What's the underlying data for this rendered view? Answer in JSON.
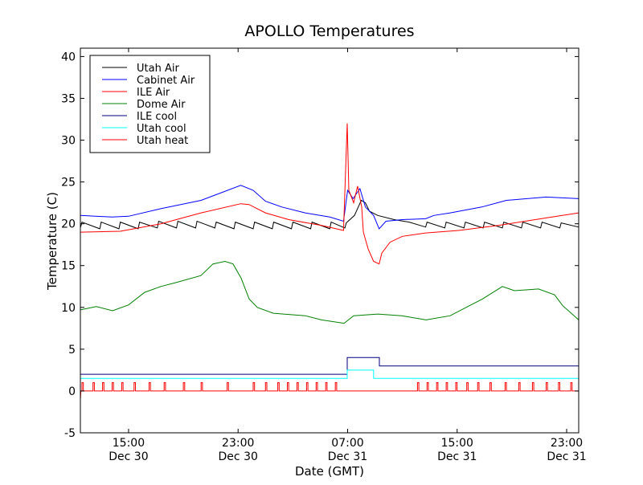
{
  "chart_data": {
    "type": "line",
    "title": "APOLLO Temperatures",
    "xlabel": "Date (GMT)",
    "ylabel": "Temperature (C)",
    "x_units": "hours since Dec 30 00:00 GMT",
    "xlim": [
      11.48,
      47.88
    ],
    "ylim": [
      -5,
      41
    ],
    "grid": false,
    "legend_position": "top-left",
    "xticks": [
      {
        "value": 15,
        "time": "15:00",
        "date": "Dec 30"
      },
      {
        "value": 23,
        "time": "23:00",
        "date": "Dec 30"
      },
      {
        "value": 31,
        "time": "07:00",
        "date": "Dec 31"
      },
      {
        "value": 39,
        "time": "15:00",
        "date": "Dec 31"
      },
      {
        "value": 47,
        "time": "23:00",
        "date": "Dec 31"
      }
    ],
    "yticks": [
      {
        "value": -5,
        "label": "-5"
      },
      {
        "value": 0,
        "label": "0"
      },
      {
        "value": 5,
        "label": "5"
      },
      {
        "value": 10,
        "label": "10"
      },
      {
        "value": 15,
        "label": "15"
      },
      {
        "value": 20,
        "label": "20"
      },
      {
        "value": 25,
        "label": "25"
      },
      {
        "value": 30,
        "label": "30"
      },
      {
        "value": 35,
        "label": "35"
      },
      {
        "value": 40,
        "label": "40"
      }
    ],
    "series": [
      {
        "name": "Utah Air",
        "color": "#000000",
        "points": [
          [
            11.5,
            19.6
          ],
          [
            11.6,
            20.2
          ],
          [
            12.9,
            19.4
          ],
          [
            13.0,
            20.2
          ],
          [
            14.3,
            19.4
          ],
          [
            14.4,
            20.2
          ],
          [
            15.7,
            19.4
          ],
          [
            15.8,
            20.2
          ],
          [
            17.1,
            19.5
          ],
          [
            17.2,
            20.3
          ],
          [
            18.5,
            19.5
          ],
          [
            18.6,
            20.3
          ],
          [
            19.9,
            19.5
          ],
          [
            20.0,
            20.3
          ],
          [
            21.3,
            19.5
          ],
          [
            21.4,
            20.2
          ],
          [
            22.7,
            19.4
          ],
          [
            22.8,
            20.2
          ],
          [
            24.1,
            19.4
          ],
          [
            24.2,
            20.2
          ],
          [
            25.5,
            19.4
          ],
          [
            25.6,
            20.2
          ],
          [
            26.9,
            19.4
          ],
          [
            27.0,
            20.2
          ],
          [
            28.3,
            19.4
          ],
          [
            28.4,
            20.2
          ],
          [
            29.7,
            19.4
          ],
          [
            29.8,
            20.2
          ],
          [
            30.8,
            19.5
          ],
          [
            30.9,
            20.1
          ],
          [
            31.5,
            21.0
          ],
          [
            32.0,
            22.8
          ],
          [
            32.3,
            22.5
          ],
          [
            32.6,
            21.5
          ],
          [
            33.2,
            21.0
          ],
          [
            34.4,
            20.5
          ],
          [
            35.5,
            20.2
          ],
          [
            36.7,
            19.6
          ],
          [
            36.8,
            20.2
          ],
          [
            38.1,
            19.5
          ],
          [
            38.2,
            20.2
          ],
          [
            39.5,
            19.5
          ],
          [
            39.6,
            20.2
          ],
          [
            40.9,
            19.5
          ],
          [
            41.0,
            20.2
          ],
          [
            42.3,
            19.5
          ],
          [
            42.4,
            20.2
          ],
          [
            43.7,
            19.5
          ],
          [
            43.8,
            20.2
          ],
          [
            45.1,
            19.5
          ],
          [
            45.2,
            20.2
          ],
          [
            46.5,
            19.5
          ],
          [
            46.6,
            20.1
          ],
          [
            47.88,
            19.6
          ]
        ]
      },
      {
        "name": "Cabinet Air",
        "color": "#0000ff",
        "points": [
          [
            11.48,
            21.0
          ],
          [
            13.8,
            20.8
          ],
          [
            15.0,
            20.9
          ],
          [
            17.35,
            21.8
          ],
          [
            20.3,
            22.8
          ],
          [
            23.2,
            24.6
          ],
          [
            24.1,
            24.0
          ],
          [
            25.0,
            22.7
          ],
          [
            26.2,
            22.0
          ],
          [
            27.9,
            21.3
          ],
          [
            29.7,
            20.8
          ],
          [
            30.7,
            20.3
          ],
          [
            31.0,
            24.0
          ],
          [
            31.4,
            23.0
          ],
          [
            31.9,
            24.2
          ],
          [
            32.3,
            22.0
          ],
          [
            32.9,
            21.0
          ],
          [
            33.3,
            19.4
          ],
          [
            33.8,
            20.3
          ],
          [
            35.0,
            20.5
          ],
          [
            36.7,
            20.6
          ],
          [
            37.3,
            21.0
          ],
          [
            38.5,
            21.3
          ],
          [
            40.8,
            22.0
          ],
          [
            42.6,
            22.8
          ],
          [
            45.5,
            23.2
          ],
          [
            47.88,
            23.0
          ]
        ]
      },
      {
        "name": "ILE Air",
        "color": "#ff0000",
        "points": [
          [
            11.48,
            19.0
          ],
          [
            14.4,
            19.1
          ],
          [
            17.35,
            20.0
          ],
          [
            20.3,
            21.3
          ],
          [
            23.2,
            22.4
          ],
          [
            23.8,
            22.3
          ],
          [
            25.0,
            21.3
          ],
          [
            26.7,
            20.5
          ],
          [
            29.1,
            19.8
          ],
          [
            30.7,
            19.2
          ],
          [
            30.97,
            32.0
          ],
          [
            31.09,
            24.0
          ],
          [
            31.44,
            22.5
          ],
          [
            31.73,
            24.5
          ],
          [
            32.03,
            22.0
          ],
          [
            32.15,
            19.0
          ],
          [
            32.5,
            17.0
          ],
          [
            32.9,
            15.5
          ],
          [
            33.3,
            15.2
          ],
          [
            33.5,
            16.5
          ],
          [
            34.1,
            17.8
          ],
          [
            35.0,
            18.5
          ],
          [
            36.7,
            18.9
          ],
          [
            39.1,
            19.2
          ],
          [
            42.0,
            19.8
          ],
          [
            45.5,
            20.7
          ],
          [
            47.88,
            21.3
          ]
        ]
      },
      {
        "name": "Dome Air",
        "color": "#008000",
        "points": [
          [
            11.48,
            9.7
          ],
          [
            12.65,
            10.1
          ],
          [
            13.83,
            9.6
          ],
          [
            15.0,
            10.3
          ],
          [
            16.17,
            11.8
          ],
          [
            17.35,
            12.5
          ],
          [
            18.52,
            13.0
          ],
          [
            20.28,
            13.8
          ],
          [
            21.17,
            15.2
          ],
          [
            22.05,
            15.5
          ],
          [
            22.63,
            15.2
          ],
          [
            23.22,
            13.5
          ],
          [
            23.81,
            11.0
          ],
          [
            24.4,
            10.0
          ],
          [
            25.57,
            9.3
          ],
          [
            27.92,
            9.0
          ],
          [
            29.09,
            8.5
          ],
          [
            30.74,
            8.1
          ],
          [
            31.44,
            9.0
          ],
          [
            33.2,
            9.2
          ],
          [
            34.96,
            9.0
          ],
          [
            36.73,
            8.5
          ],
          [
            38.49,
            9.0
          ],
          [
            39.66,
            10.0
          ],
          [
            40.84,
            11.0
          ],
          [
            42.3,
            12.5
          ],
          [
            43.19,
            12.0
          ],
          [
            44.95,
            12.2
          ],
          [
            46.12,
            11.5
          ],
          [
            46.71,
            10.2
          ],
          [
            47.88,
            8.5
          ]
        ]
      },
      {
        "name": "ILE cool",
        "color": "#000080",
        "points": [
          [
            11.48,
            2.0
          ],
          [
            30.97,
            2.0
          ],
          [
            30.97,
            4.0
          ],
          [
            33.32,
            4.0
          ],
          [
            33.32,
            3.0
          ],
          [
            47.88,
            3.0
          ]
        ]
      },
      {
        "name": "Utah cool",
        "color": "#00ffff",
        "points": [
          [
            11.48,
            1.5
          ],
          [
            30.97,
            1.5
          ],
          [
            30.97,
            2.5
          ],
          [
            32.9,
            2.5
          ],
          [
            32.9,
            1.5
          ],
          [
            47.88,
            1.5
          ]
        ]
      },
      {
        "name": "Utah heat",
        "color": "#ff0000",
        "points": [
          [
            11.48,
            -1.0
          ],
          [
            11.52,
            0
          ],
          [
            11.6,
            0
          ],
          [
            11.6,
            1
          ],
          [
            11.7,
            1
          ],
          [
            11.7,
            0
          ],
          [
            12.4,
            0
          ],
          [
            12.4,
            1
          ],
          [
            12.5,
            1
          ],
          [
            12.5,
            0
          ],
          [
            13.1,
            0
          ],
          [
            13.1,
            1
          ],
          [
            13.2,
            1
          ],
          [
            13.2,
            0
          ],
          [
            13.8,
            0
          ],
          [
            13.8,
            1
          ],
          [
            13.9,
            1
          ],
          [
            13.9,
            0
          ],
          [
            14.5,
            0
          ],
          [
            14.5,
            1
          ],
          [
            14.6,
            1
          ],
          [
            14.6,
            0
          ],
          [
            15.4,
            0
          ],
          [
            15.4,
            1
          ],
          [
            15.5,
            1
          ],
          [
            15.5,
            0
          ],
          [
            16.5,
            0
          ],
          [
            16.5,
            1
          ],
          [
            16.6,
            1
          ],
          [
            16.6,
            0
          ],
          [
            17.6,
            0
          ],
          [
            17.6,
            1
          ],
          [
            17.7,
            1
          ],
          [
            17.7,
            0
          ],
          [
            19.0,
            0
          ],
          [
            19.0,
            1
          ],
          [
            19.1,
            1
          ],
          [
            19.1,
            0
          ],
          [
            20.3,
            0
          ],
          [
            20.3,
            1
          ],
          [
            20.4,
            1
          ],
          [
            20.4,
            0
          ],
          [
            22.2,
            0
          ],
          [
            22.2,
            1
          ],
          [
            22.3,
            1
          ],
          [
            22.3,
            0
          ],
          [
            24.1,
            0
          ],
          [
            24.1,
            1
          ],
          [
            24.2,
            1
          ],
          [
            24.2,
            0
          ],
          [
            25.0,
            0
          ],
          [
            25.0,
            1
          ],
          [
            25.1,
            1
          ],
          [
            25.1,
            0
          ],
          [
            25.9,
            0
          ],
          [
            25.9,
            1
          ],
          [
            26.0,
            1
          ],
          [
            26.0,
            0
          ],
          [
            26.6,
            0
          ],
          [
            26.6,
            1
          ],
          [
            26.7,
            1
          ],
          [
            26.7,
            0
          ],
          [
            27.3,
            0
          ],
          [
            27.3,
            1
          ],
          [
            27.4,
            1
          ],
          [
            27.4,
            0
          ],
          [
            28.0,
            0
          ],
          [
            28.0,
            1
          ],
          [
            28.1,
            1
          ],
          [
            28.1,
            0
          ],
          [
            28.7,
            0
          ],
          [
            28.7,
            1
          ],
          [
            28.8,
            1
          ],
          [
            28.8,
            0
          ],
          [
            29.4,
            0
          ],
          [
            29.4,
            1
          ],
          [
            29.5,
            1
          ],
          [
            29.5,
            0
          ],
          [
            30.1,
            0
          ],
          [
            30.1,
            1
          ],
          [
            30.2,
            1
          ],
          [
            30.2,
            0
          ],
          [
            36.1,
            0
          ],
          [
            36.1,
            1
          ],
          [
            36.2,
            1
          ],
          [
            36.2,
            0
          ],
          [
            36.8,
            0
          ],
          [
            36.8,
            1
          ],
          [
            36.9,
            1
          ],
          [
            36.9,
            0
          ],
          [
            37.5,
            0
          ],
          [
            37.5,
            1
          ],
          [
            37.6,
            1
          ],
          [
            37.6,
            0
          ],
          [
            38.2,
            0
          ],
          [
            38.2,
            1
          ],
          [
            38.3,
            1
          ],
          [
            38.3,
            0
          ],
          [
            38.9,
            0
          ],
          [
            38.9,
            1
          ],
          [
            39.0,
            1
          ],
          [
            39.0,
            0
          ],
          [
            39.7,
            0
          ],
          [
            39.7,
            1
          ],
          [
            39.8,
            1
          ],
          [
            39.8,
            0
          ],
          [
            40.5,
            0
          ],
          [
            40.5,
            1
          ],
          [
            40.6,
            1
          ],
          [
            40.6,
            0
          ],
          [
            41.4,
            0
          ],
          [
            41.4,
            1
          ],
          [
            41.5,
            1
          ],
          [
            41.5,
            0
          ],
          [
            42.5,
            0
          ],
          [
            42.5,
            1
          ],
          [
            42.6,
            1
          ],
          [
            42.6,
            0
          ],
          [
            43.5,
            0
          ],
          [
            43.5,
            1
          ],
          [
            43.6,
            1
          ],
          [
            43.6,
            0
          ],
          [
            44.5,
            0
          ],
          [
            44.5,
            1
          ],
          [
            44.6,
            1
          ],
          [
            44.6,
            0
          ],
          [
            45.5,
            0
          ],
          [
            45.5,
            1
          ],
          [
            45.6,
            1
          ],
          [
            45.6,
            0
          ],
          [
            46.4,
            0
          ],
          [
            46.4,
            1
          ],
          [
            46.5,
            1
          ],
          [
            46.5,
            0
          ],
          [
            47.3,
            0
          ],
          [
            47.3,
            1
          ],
          [
            47.4,
            1
          ],
          [
            47.4,
            0
          ],
          [
            47.88,
            0
          ]
        ]
      }
    ]
  }
}
